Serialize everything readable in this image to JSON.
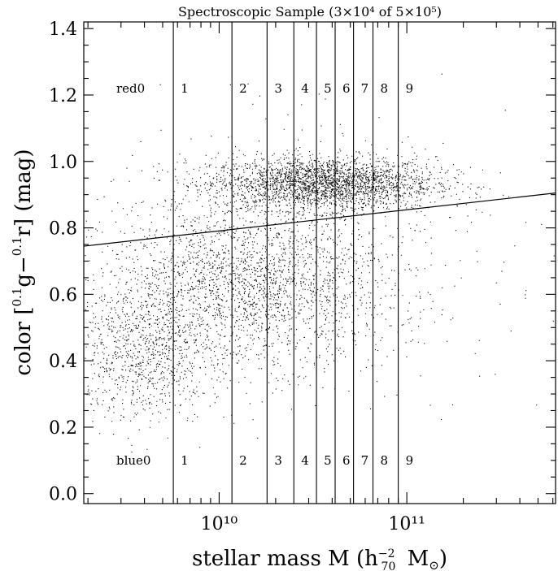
{
  "chart_data": {
    "type": "scatter",
    "title": "Spectroscopic Sample (3×10⁴ of 5×10⁵)",
    "xlabel": "stellar mass M (h₇₀⁻² M⊙)",
    "ylabel": "color [⁰·¹g−⁰·¹r] (mag)",
    "x_scale": "log",
    "xlim": [
      1900000000.0,
      620000000000.0
    ],
    "ylim": [
      -0.03,
      1.42
    ],
    "x_major_ticks": [
      {
        "value": 10000000000.0,
        "label": "10¹⁰"
      },
      {
        "value": 100000000000.0,
        "label": "10¹¹"
      }
    ],
    "y_ticks": [
      {
        "value": 0.0,
        "label": "0.0"
      },
      {
        "value": 0.2,
        "label": "0.2"
      },
      {
        "value": 0.4,
        "label": "0.4"
      },
      {
        "value": 0.6,
        "label": "0.6"
      },
      {
        "value": 0.8,
        "label": "0.8"
      },
      {
        "value": 1.0,
        "label": "1.0"
      },
      {
        "value": 1.2,
        "label": "1.2"
      },
      {
        "value": 1.4,
        "label": "1.4"
      }
    ],
    "red_blue_divider": {
      "x": [
        1900000000.0,
        620000000000.0
      ],
      "y": [
        0.745,
        0.905
      ]
    },
    "mass_bin_edges": [
      5700000000.0,
      11700000000.0,
      18000000000.0,
      25000000000.0,
      33000000000.0,
      41500000000.0,
      52000000000.0,
      66000000000.0,
      90000000000.0
    ],
    "bin_labels": [
      "1",
      "2",
      "3",
      "4",
      "5",
      "6",
      "7",
      "8",
      "9"
    ],
    "red_prefix": "red0",
    "blue_prefix": "blue0",
    "red_label_y": 1.22,
    "blue_label_y": 0.1,
    "point_populations": [
      {
        "name": "",
        "n": 2600,
        "logx_mean": 10.55,
        "logx_sd": 0.3,
        "y_mean": 0.935,
        "y_sd": 0.04
      },
      {
        "name": "",
        "n": 2200,
        "logx_mean": 10.15,
        "logx_sd": 0.38,
        "y_mean": 0.63,
        "y_sd": 0.12
      },
      {
        "name": "",
        "n": 900,
        "logx_mean": 9.6,
        "logx_sd": 0.2,
        "y_mean": 0.42,
        "y_sd": 0.1
      },
      {
        "name": "",
        "n": 550,
        "logx_mean": 10.3,
        "logx_sd": 0.6,
        "y_mean": 0.72,
        "y_sd": 0.2
      }
    ]
  }
}
